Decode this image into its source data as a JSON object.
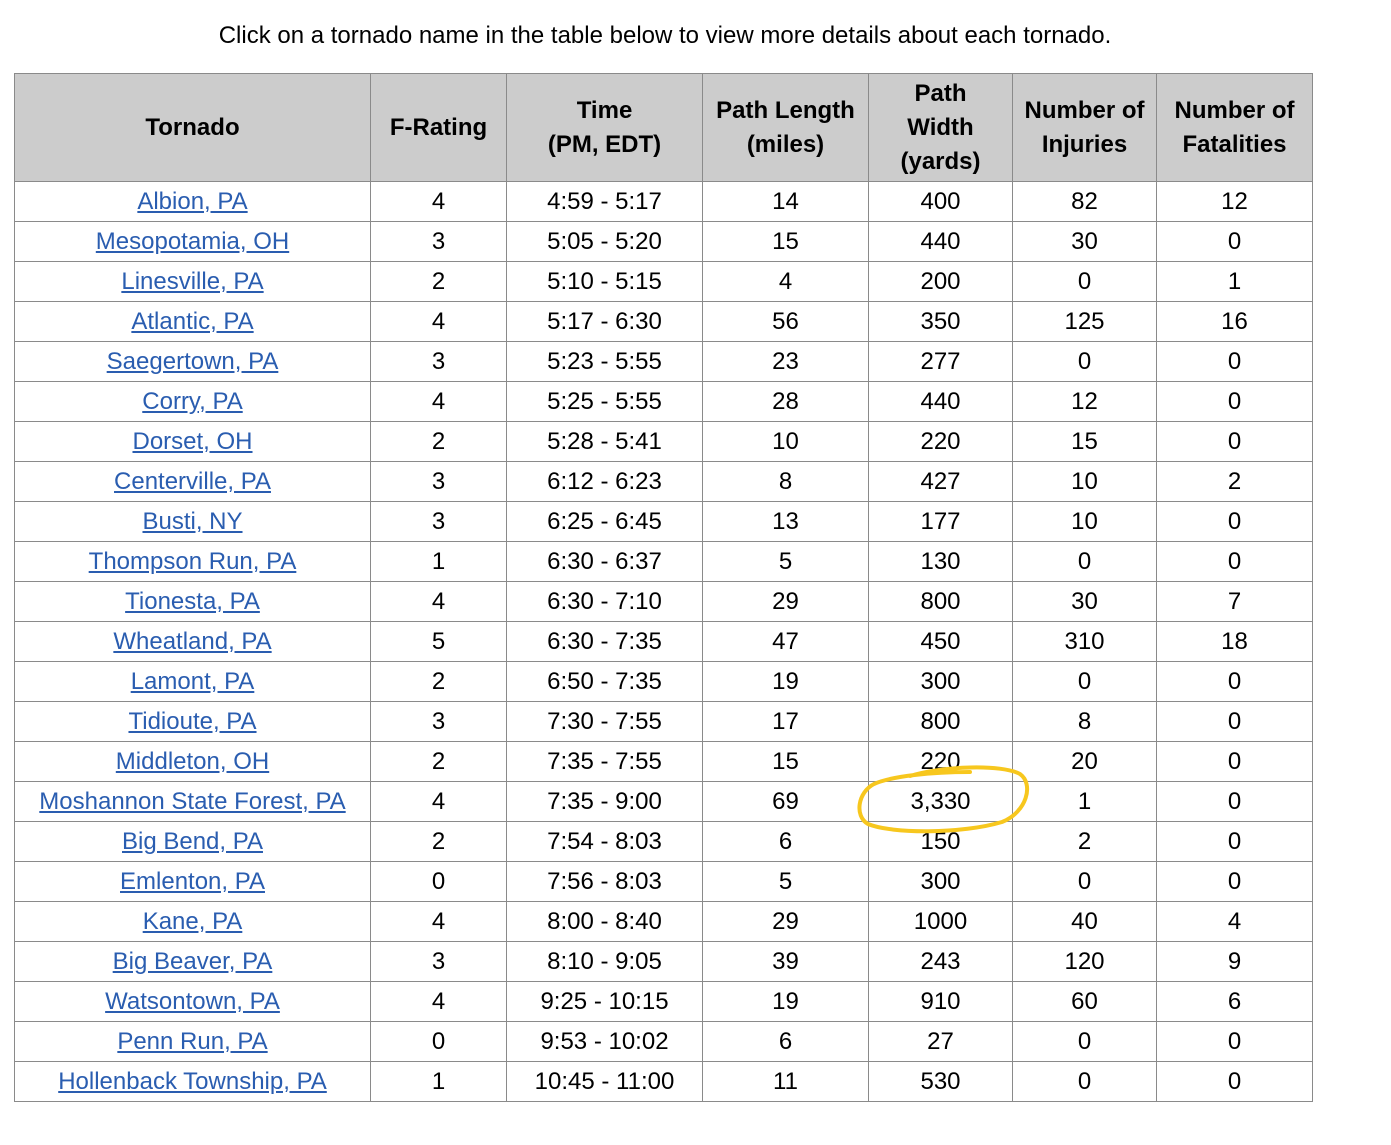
{
  "intro_text": "Click on a tornado name in the table below to view more details about each tornado.",
  "headers": [
    "Tornado",
    "F-Rating",
    "Time\n(PM, EDT)",
    "Path Length\n(miles)",
    "Path\nWidth\n(yards)",
    "Number of\nInjuries",
    "Number of\nFatalities"
  ],
  "rows": [
    [
      "Albion, PA",
      "4",
      "4:59 - 5:17",
      "14",
      "400",
      "82",
      "12"
    ],
    [
      "Mesopotamia, OH",
      "3",
      "5:05 - 5:20",
      "15",
      "440",
      "30",
      "0"
    ],
    [
      "Linesville, PA",
      "2",
      "5:10 - 5:15",
      "4",
      "200",
      "0",
      "1"
    ],
    [
      "Atlantic, PA",
      "4",
      "5:17 - 6:30",
      "56",
      "350",
      "125",
      "16"
    ],
    [
      "Saegertown, PA",
      "3",
      "5:23 - 5:55",
      "23",
      "277",
      "0",
      "0"
    ],
    [
      "Corry, PA",
      "4",
      "5:25 - 5:55",
      "28",
      "440",
      "12",
      "0"
    ],
    [
      "Dorset, OH",
      "2",
      "5:28 - 5:41",
      "10",
      "220",
      "15",
      "0"
    ],
    [
      "Centerville, PA",
      "3",
      "6:12 - 6:23",
      "8",
      "427",
      "10",
      "2"
    ],
    [
      "Busti, NY",
      "3",
      "6:25 - 6:45",
      "13",
      "177",
      "10",
      "0"
    ],
    [
      "Thompson Run, PA",
      "1",
      "6:30 - 6:37",
      "5",
      "130",
      "0",
      "0"
    ],
    [
      "Tionesta, PA",
      "4",
      "6:30 - 7:10",
      "29",
      "800",
      "30",
      "7"
    ],
    [
      "Wheatland, PA",
      "5",
      "6:30 - 7:35",
      "47",
      "450",
      "310",
      "18"
    ],
    [
      "Lamont, PA",
      "2",
      "6:50 - 7:35",
      "19",
      "300",
      "0",
      "0"
    ],
    [
      "Tidioute, PA",
      "3",
      "7:30 - 7:55",
      "17",
      "800",
      "8",
      "0"
    ],
    [
      "Middleton, OH",
      "2",
      "7:35 - 7:55",
      "15",
      "220",
      "20",
      "0"
    ],
    [
      "Moshannon State Forest, PA",
      "4",
      "7:35 - 9:00",
      "69",
      "3,330",
      "1",
      "0"
    ],
    [
      "Big Bend, PA",
      "2",
      "7:54 - 8:03",
      "6",
      "150",
      "2",
      "0"
    ],
    [
      "Emlenton, PA",
      "0",
      "7:56 - 8:03",
      "5",
      "300",
      "0",
      "0"
    ],
    [
      "Kane, PA",
      "4",
      "8:00 - 8:40",
      "29",
      "1000",
      "40",
      "4"
    ],
    [
      "Big Beaver, PA",
      "3",
      "8:10 - 9:05",
      "39",
      "243",
      "120",
      "9"
    ],
    [
      "Watsontown, PA",
      "4",
      "9:25 - 10:15",
      "19",
      "910",
      "60",
      "6"
    ],
    [
      "Penn Run, PA",
      "0",
      "9:53 - 10:02",
      "6",
      "27",
      "0",
      "0"
    ],
    [
      "Hollenback Township, PA",
      "1",
      "10:45 - 11:00",
      "11",
      "530",
      "0",
      "0"
    ]
  ],
  "colors": {
    "link": "#2a5db0",
    "header_bg": "#cccccc",
    "annotation": "#f7c71e"
  },
  "annotation": {
    "shape": "hand-drawn circle",
    "highlighted_cell": "Moshannon State Forest, PA — Path Width 3,330"
  }
}
